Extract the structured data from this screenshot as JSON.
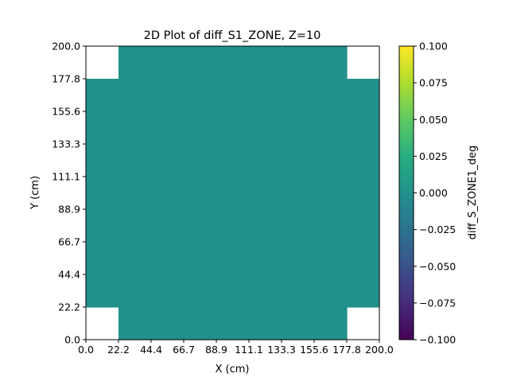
{
  "chart_data": {
    "type": "heatmap",
    "title": "2D Plot of diff_S1_ZONE, Z=10",
    "xlabel": "X (cm)",
    "ylabel": "Y (cm)",
    "xlim": [
      0,
      200
    ],
    "ylim": [
      0,
      200
    ],
    "xticks": [
      "0.0",
      "22.2",
      "44.4",
      "66.7",
      "88.9",
      "111.1",
      "133.3",
      "155.6",
      "177.8",
      "200.0"
    ],
    "yticks": [
      "0.0",
      "22.2",
      "44.4",
      "66.7",
      "88.9",
      "111.1",
      "133.3",
      "155.6",
      "177.8",
      "200.0"
    ],
    "grid_rows": 9,
    "grid_cols": 9,
    "empty_cells": [
      [
        0,
        0
      ],
      [
        0,
        8
      ],
      [
        8,
        0
      ],
      [
        8,
        8
      ]
    ],
    "cell_value": 0.0,
    "cell_color": "#21918c",
    "colormap": "viridis",
    "colorbar": {
      "label": "diff_S_ZONE1_deg",
      "min": -0.1,
      "max": 0.1,
      "ticks": [
        "0.100",
        "0.075",
        "0.050",
        "0.025",
        "0.000",
        "−0.025",
        "−0.050",
        "−0.075",
        "−0.100"
      ]
    },
    "grid": false
  }
}
